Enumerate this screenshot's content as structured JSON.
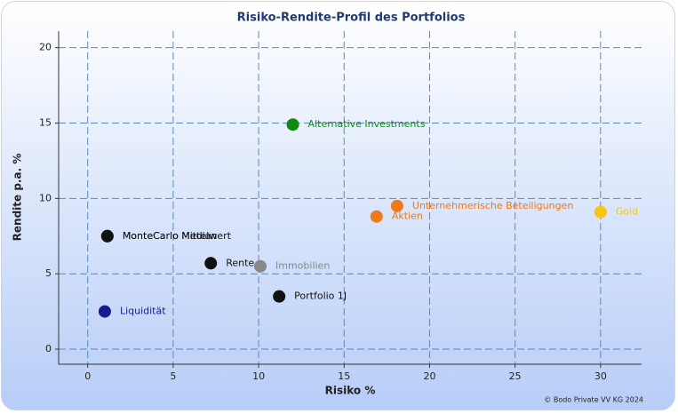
{
  "chart_data": {
    "type": "scatter",
    "title": "Risiko-Rendite-Profil des Portfolios",
    "x_label": "Risiko %",
    "y_label": "Rendite p.a. %",
    "footnote": "© Bodo Private VV KG 2024",
    "xlim": [
      -1.7,
      32.4
    ],
    "ylim": [
      -1.0,
      21.1
    ],
    "xticks": [
      0,
      5,
      10,
      15,
      20,
      25,
      30
    ],
    "yticks": [
      0,
      5,
      10,
      15,
      20
    ],
    "grid": true,
    "series": [
      {
        "name": "Alternative Investments",
        "color": "#118811",
        "x": [
          12.0
        ],
        "values": [
          14.9
        ]
      },
      {
        "name": "Unternehmerische Beteiligungen",
        "color": "#f07818",
        "x": [
          18.1
        ],
        "values": [
          9.5
        ]
      },
      {
        "name": "Aktien",
        "color": "#f07818",
        "x": [
          16.9
        ],
        "values": [
          8.8
        ]
      },
      {
        "name": "Gold",
        "color": "#f5c518",
        "x": [
          30.0
        ],
        "values": [
          9.1
        ]
      },
      {
        "name": "MonteCarlo Median",
        "color": "#111111",
        "x": [
          1.15
        ],
        "values": [
          7.5
        ]
      },
      {
        "name": "MonteCarlo Mittelwert",
        "color": "#111111",
        "x": [
          1.15
        ],
        "values": [
          7.5
        ]
      },
      {
        "name": "Rente",
        "color": "#111111",
        "x": [
          7.2
        ],
        "values": [
          5.7
        ]
      },
      {
        "name": "Immobilien",
        "color": "#888888",
        "x": [
          10.1
        ],
        "values": [
          5.5
        ]
      },
      {
        "name": "Portfolio 1J",
        "color": "#111111",
        "x": [
          11.2
        ],
        "values": [
          3.5
        ]
      },
      {
        "name": "Liquidität",
        "color": "#1a1a8c",
        "x": [
          1.0
        ],
        "values": [
          2.5
        ]
      }
    ]
  }
}
